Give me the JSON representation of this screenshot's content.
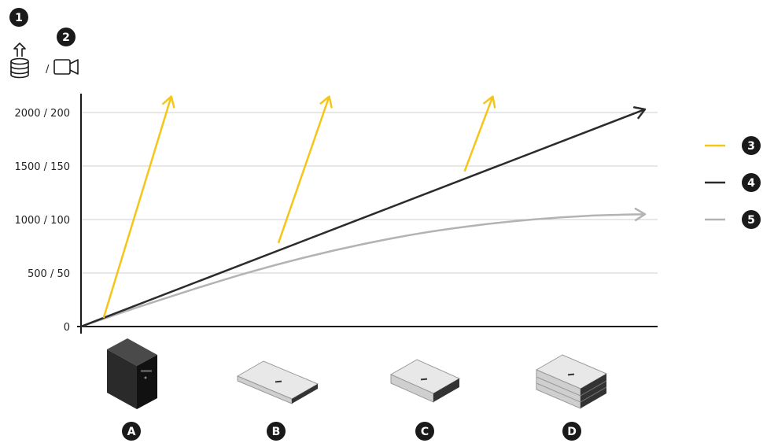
{
  "header": {
    "badge_1": "1",
    "badge_2": "2",
    "separator": "/",
    "icons": [
      "database-upload-icon",
      "video-camera-icon"
    ]
  },
  "chart_data": {
    "type": "line",
    "yticks": [
      "0",
      "500 / 50",
      "1000 / 100",
      "1500 / 150",
      "2000 / 200"
    ],
    "y_values": [
      0,
      500,
      1000,
      1500,
      2000
    ],
    "ylim": [
      0,
      2000
    ],
    "xlim": [
      0,
      1
    ],
    "grid": true,
    "colors": {
      "yellow": "#f5c518",
      "black": "#2b2b2b",
      "gray": "#b3b3b3"
    },
    "series": [
      {
        "key": "3",
        "color": "#f5c518",
        "segments": [
          [
            [
              0.04,
              80
            ],
            [
              0.16,
              2150
            ]
          ],
          [
            [
              0.35,
              780
            ],
            [
              0.44,
              2150
            ]
          ],
          [
            [
              0.68,
              1450
            ],
            [
              0.73,
              2150
            ]
          ]
        ]
      },
      {
        "key": "4",
        "color": "#2b2b2b",
        "points": [
          [
            0,
            0
          ],
          [
            1,
            2030
          ]
        ]
      },
      {
        "key": "5",
        "color": "#b3b3b3",
        "points": [
          [
            0,
            0
          ],
          [
            0.1,
            180
          ],
          [
            0.2,
            350
          ],
          [
            0.3,
            510
          ],
          [
            0.4,
            650
          ],
          [
            0.5,
            770
          ],
          [
            0.6,
            870
          ],
          [
            0.7,
            945
          ],
          [
            0.8,
            1000
          ],
          [
            0.9,
            1035
          ],
          [
            1,
            1050
          ]
        ]
      }
    ]
  },
  "legend": {
    "placement": "right",
    "items": [
      {
        "label": "3",
        "color": "#f5c518"
      },
      {
        "label": "4",
        "color": "#2b2b2b"
      },
      {
        "label": "5",
        "color": "#b3b3b3"
      }
    ]
  },
  "hardware": {
    "items": [
      {
        "label": "A",
        "icon": "tower-server-icon"
      },
      {
        "label": "B",
        "icon": "rack-server-1u-icon"
      },
      {
        "label": "C",
        "icon": "rack-server-2u-icon"
      },
      {
        "label": "D",
        "icon": "rack-server-stacked-icon"
      }
    ]
  }
}
